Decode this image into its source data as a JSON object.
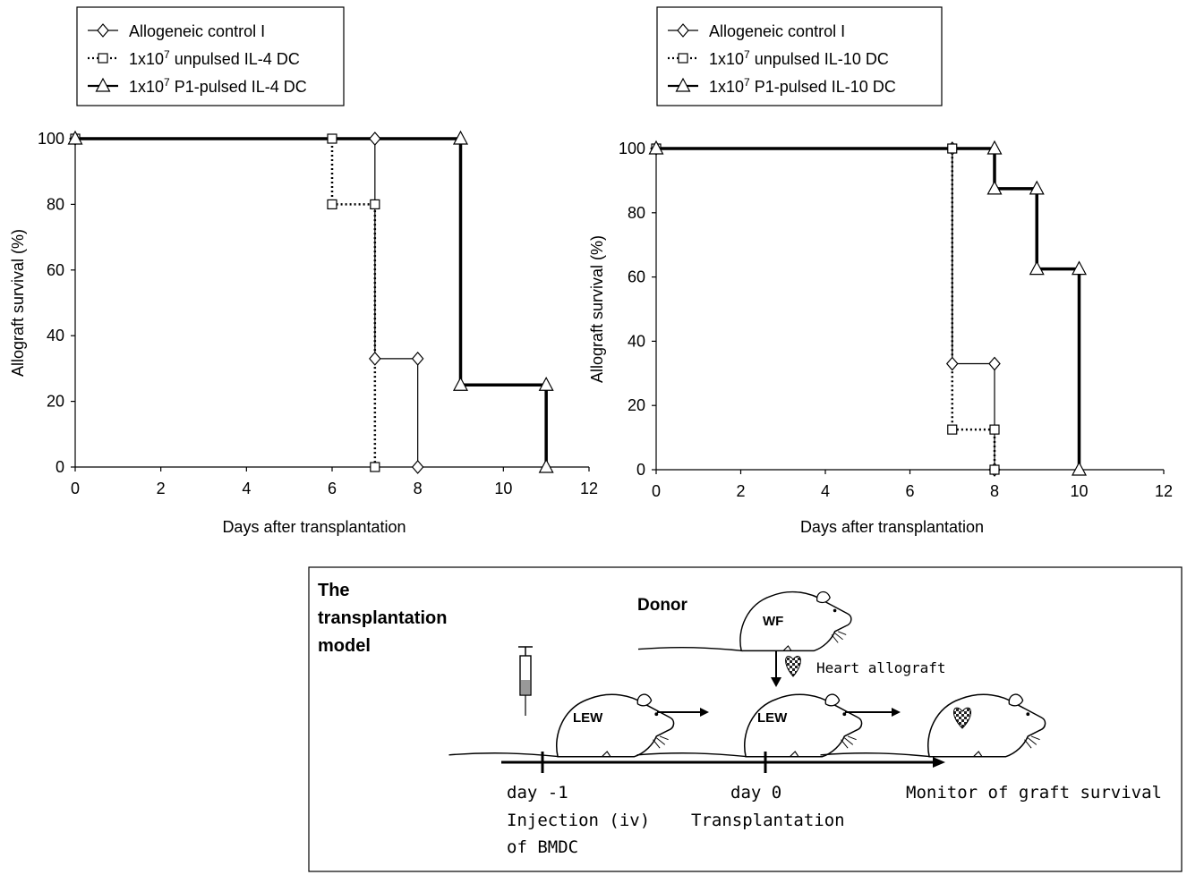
{
  "chart_data": [
    {
      "type": "line",
      "step": true,
      "x_label": "Days after transplantation",
      "y_label": "Allograft survival (%)",
      "xlim": [
        0,
        12
      ],
      "ylim": [
        0,
        100
      ],
      "x_ticks": [
        "0",
        "2",
        "4",
        "6",
        "8",
        "10",
        "12"
      ],
      "y_ticks": [
        "0",
        "20",
        "40",
        "60",
        "80",
        "100"
      ],
      "grid": false,
      "legend_position": "top-left, boxed",
      "series": [
        {
          "name": "Allogeneic control I",
          "marker": "diamond",
          "line": "solid-thin",
          "x": [
            0,
            7,
            7,
            8,
            8
          ],
          "y": [
            100,
            100,
            33,
            33,
            0
          ]
        },
        {
          "name_prefix": "1x10",
          "name_sup": "7",
          "name_suffix": " unpulsed IL-4 DC",
          "marker": "square",
          "line": "dotted",
          "x": [
            0,
            6,
            6,
            7,
            7
          ],
          "y": [
            100,
            100,
            80,
            80,
            0
          ]
        },
        {
          "name_prefix": "1x10",
          "name_sup": "7",
          "name_suffix": " P1-pulsed IL-4 DC",
          "marker": "triangle",
          "line": "solid-thick",
          "x": [
            0,
            9,
            9,
            11,
            11
          ],
          "y": [
            100,
            100,
            25,
            25,
            0
          ]
        }
      ]
    },
    {
      "type": "line",
      "step": true,
      "x_label": "Days after transplantation",
      "y_label": "Allograft survival (%)",
      "xlim": [
        0,
        12
      ],
      "ylim": [
        0,
        100
      ],
      "x_ticks": [
        "0",
        "2",
        "4",
        "6",
        "8",
        "10",
        "12"
      ],
      "y_ticks": [
        "0",
        "20",
        "40",
        "60",
        "80",
        "100"
      ],
      "grid": false,
      "legend_position": "top-left, boxed",
      "series": [
        {
          "name": "Allogeneic control I",
          "marker": "diamond",
          "line": "solid-thin",
          "x": [
            0,
            7,
            7,
            8,
            8
          ],
          "y": [
            100,
            100,
            33,
            33,
            0
          ]
        },
        {
          "name_prefix": "1x10",
          "name_sup": "7",
          "name_suffix": " unpulsed IL-10 DC",
          "marker": "square",
          "line": "dotted",
          "x": [
            0,
            7,
            7,
            8,
            8
          ],
          "y": [
            100,
            100,
            12.5,
            12.5,
            0
          ]
        },
        {
          "name_prefix": "1x10",
          "name_sup": "7",
          "name_suffix": " P1-pulsed IL-10 DC",
          "marker": "triangle",
          "line": "solid-thick",
          "x": [
            0,
            8,
            8,
            9,
            9,
            10,
            10
          ],
          "y": [
            100,
            100,
            87.5,
            87.5,
            62.5,
            62.5,
            0
          ]
        }
      ]
    }
  ],
  "diagram": {
    "title_lines": [
      "The",
      "transplantation",
      "model"
    ],
    "donor_label": "Donor",
    "donor_strain": "WF",
    "recipient_strain": "LEW",
    "heart_label": "Heart allograft",
    "step1_line1": "day -1",
    "step1_line2": "Injection (iv)",
    "step1_line3": "of BMDC",
    "step2_line1": "day 0",
    "step2_line2": "Transplantation",
    "step3_line1": "Monitor of graft survival"
  }
}
